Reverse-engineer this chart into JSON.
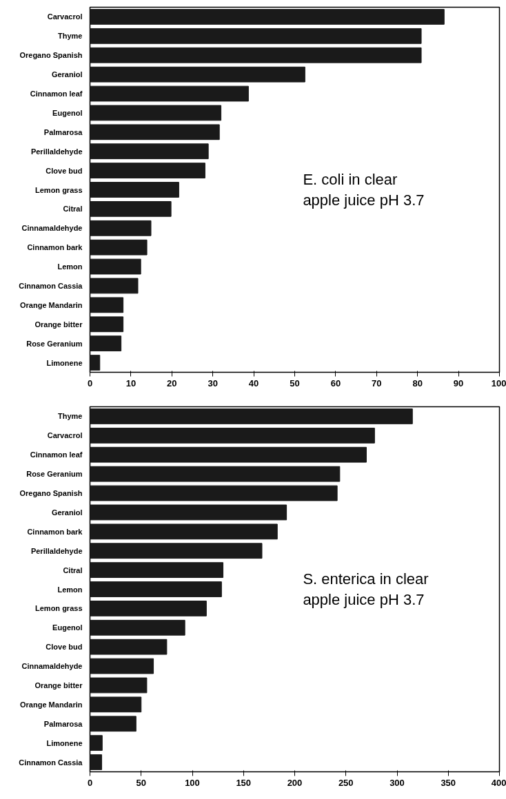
{
  "chart_data": [
    {
      "type": "bar",
      "orientation": "horizontal",
      "categories": [
        "Carvacrol",
        "Thyme",
        "Oregano Spanish",
        "Geraniol",
        "Cinnamon leaf",
        "Eugenol",
        "Palmarosa",
        "Perillaldehyde",
        "Clove bud",
        "Lemon grass",
        "Citral",
        "Cinnamaldehyde",
        "Cinnamon bark",
        "Lemon",
        "Cinnamon Cassia",
        "Orange Mandarin",
        "Orange bitter",
        "Rose Geranium",
        "Limonene"
      ],
      "values": [
        86.5,
        80.9,
        80.9,
        52.5,
        38.7,
        32,
        31.6,
        28.9,
        28.1,
        21.7,
        19.8,
        14.9,
        13.9,
        12.4,
        11.7,
        8.1,
        8.1,
        7.6,
        2.4
      ],
      "color": "#1a1a1a",
      "xlim": [
        0,
        100
      ],
      "xticks": [
        0,
        10,
        20,
        30,
        40,
        50,
        60,
        70,
        80,
        90,
        100
      ],
      "grid": false,
      "annotations": [
        "E. coli in clear\napple juice pH 3.7"
      ]
    },
    {
      "type": "bar",
      "orientation": "horizontal",
      "categories": [
        "Thyme",
        "Carvacrol",
        "Cinnamon leaf",
        "Rose Geranium",
        "Oregano Spanish",
        "Geraniol",
        "Cinnamon bark",
        "Perillaldehyde",
        "Citral",
        "Lemon",
        "Lemon grass",
        "Eugenol",
        "Clove bud",
        "Cinnamaldehyde",
        "Orange bitter",
        "Orange Mandarin",
        "Palmarosa",
        "Limonene",
        "Cinnamon Cassia"
      ],
      "values": [
        315,
        278,
        270,
        244,
        241.5,
        192,
        183,
        168,
        130,
        128.5,
        113.7,
        92.7,
        75,
        62,
        55.5,
        50,
        45,
        12,
        11.5
      ],
      "color": "#1a1a1a",
      "xlim": [
        0,
        400
      ],
      "xticks": [
        0,
        50,
        100,
        150,
        200,
        250,
        300,
        350,
        400
      ],
      "grid": false,
      "annotations": [
        "S. enterica in clear\napple juice pH 3.7"
      ]
    }
  ]
}
